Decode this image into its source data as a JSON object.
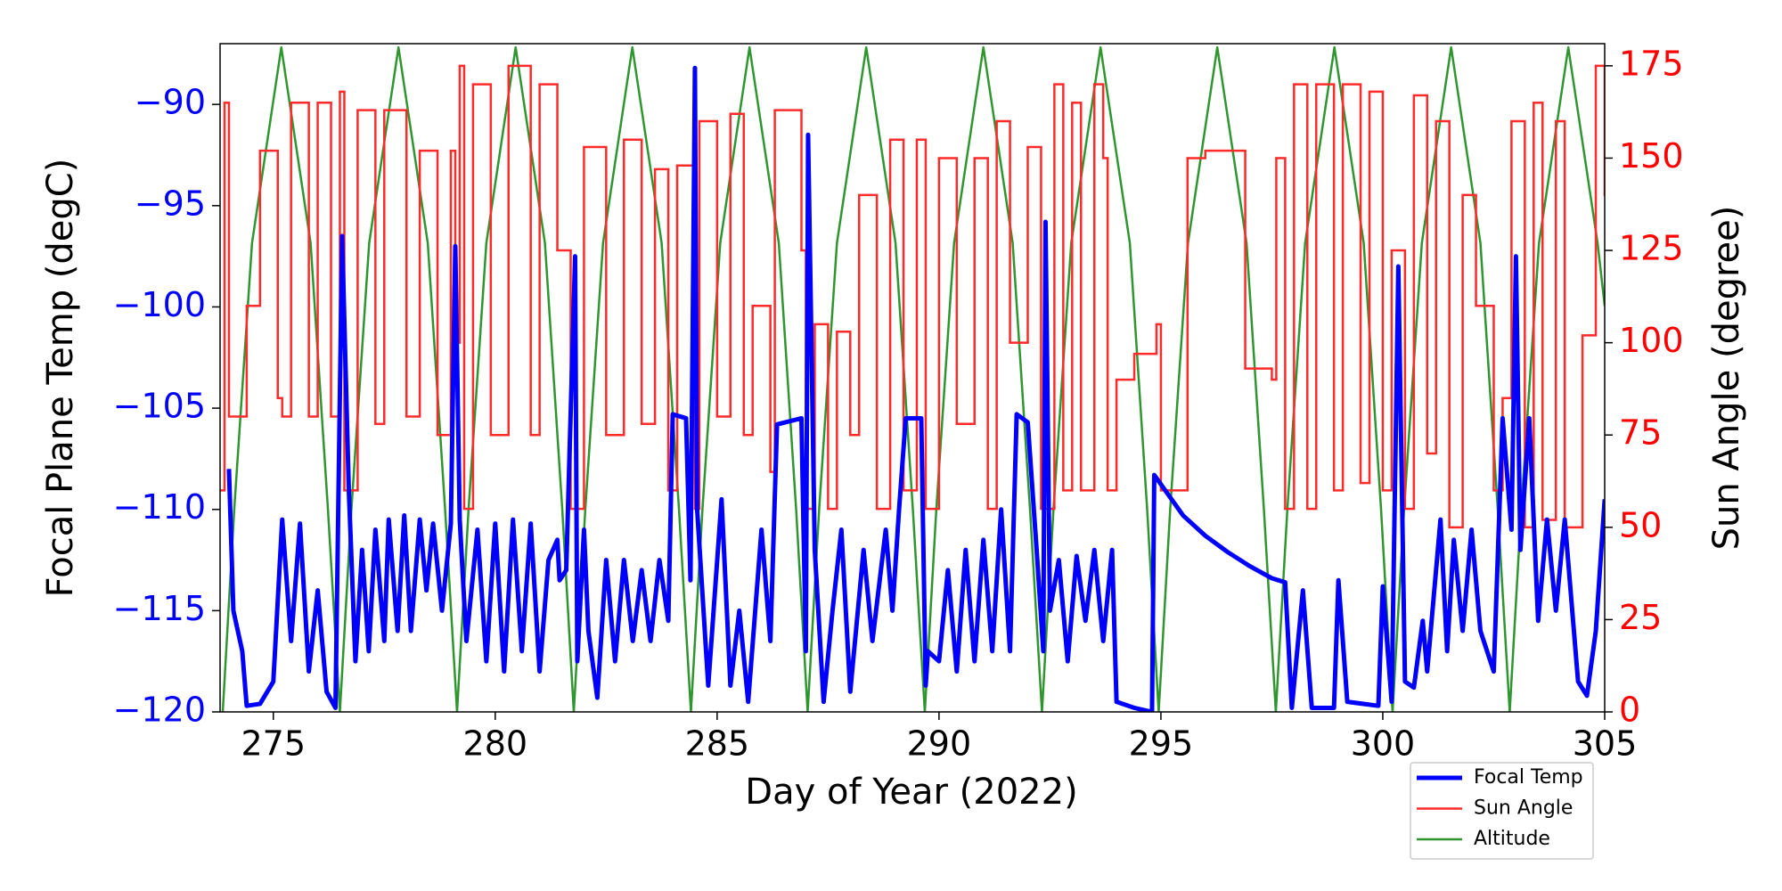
{
  "chart_data": {
    "type": "line",
    "xlabel": "Day of Year (2022)",
    "ylabel": "Focal Plane Temp (degC)",
    "y2label": "Sun Angle (degree)",
    "xlim": [
      273.8,
      305
    ],
    "xticks": [
      275,
      280,
      285,
      290,
      295,
      300,
      305
    ],
    "ylim": [
      -120,
      -87
    ],
    "yticks": [
      {
        "value": -120,
        "label": "−120"
      },
      {
        "value": -115,
        "label": "−115"
      },
      {
        "value": -110,
        "label": "−110"
      },
      {
        "value": -105,
        "label": "−105"
      },
      {
        "value": -100,
        "label": "−100"
      },
      {
        "value": -95,
        "label": "−95"
      },
      {
        "value": -90,
        "label": "−90"
      }
    ],
    "y2lim": [
      0,
      181
    ],
    "y2ticks": [
      0,
      25,
      50,
      75,
      100,
      125,
      150,
      175
    ],
    "ytick_color": "#0000ff",
    "y2tick_color": "#ff0000",
    "legend": "lower right",
    "series": [
      {
        "name": "Focal Temp",
        "color": "#0000ff",
        "line_width": 5,
        "x": [
          274.0,
          274.1,
          274.3,
          274.4,
          274.7,
          275.0,
          275.2,
          275.4,
          275.6,
          275.8,
          276.0,
          276.2,
          276.4,
          276.55,
          276.7,
          276.85,
          277.0,
          277.15,
          277.3,
          277.5,
          277.6,
          277.8,
          277.95,
          278.1,
          278.3,
          278.45,
          278.6,
          278.8,
          279.0,
          279.1,
          279.2,
          279.35,
          279.6,
          279.8,
          280.0,
          280.2,
          280.4,
          280.6,
          280.8,
          281.0,
          281.2,
          281.4,
          281.45,
          281.6,
          281.8,
          281.85,
          282.0,
          282.1,
          282.3,
          282.5,
          282.7,
          282.9,
          283.1,
          283.3,
          283.5,
          283.7,
          283.9,
          284.0,
          284.3,
          284.4,
          284.5,
          284.55,
          284.8,
          285.1,
          285.3,
          285.5,
          285.7,
          286.0,
          286.2,
          286.35,
          286.9,
          287.0,
          287.05,
          287.2,
          287.4,
          287.6,
          287.8,
          288.0,
          288.3,
          288.5,
          288.8,
          288.95,
          289.1,
          289.25,
          289.6,
          289.7,
          289.75,
          290.0,
          290.2,
          290.4,
          290.6,
          290.8,
          291.0,
          291.2,
          291.4,
          291.6,
          291.75,
          292.0,
          292.2,
          292.35,
          292.4,
          292.5,
          292.7,
          292.9,
          293.1,
          293.3,
          293.5,
          293.7,
          293.9,
          294.0,
          294.4,
          294.8,
          294.85,
          295.5,
          296.0,
          296.5,
          297.0,
          297.5,
          297.8,
          297.95,
          298.2,
          298.4,
          298.9,
          299.0,
          299.2,
          299.9,
          300.0,
          300.2,
          300.35,
          300.5,
          300.7,
          300.9,
          301.0,
          301.3,
          301.45,
          301.6,
          301.8,
          302.0,
          302.2,
          302.5,
          302.7,
          302.9,
          303.0,
          303.1,
          303.3,
          303.5,
          303.7,
          303.9,
          304.1,
          304.4,
          304.6,
          304.8,
          305.0
        ],
        "values": [
          -108,
          -115,
          -117,
          -119.7,
          -119.6,
          -118.5,
          -110.5,
          -116.5,
          -110.7,
          -118,
          -114,
          -119,
          -119.8,
          -96.5,
          -109,
          -117.5,
          -112,
          -117,
          -111,
          -116.5,
          -110.5,
          -116,
          -110.3,
          -116,
          -110.5,
          -114,
          -110.7,
          -115,
          -110.7,
          -97,
          -110.5,
          -116.5,
          -111,
          -117.5,
          -110.7,
          -118,
          -110.5,
          -117,
          -110.7,
          -118,
          -112.5,
          -111.5,
          -113.5,
          -113,
          -97.5,
          -117.5,
          -111,
          -116,
          -119.3,
          -112.5,
          -117.5,
          -112.5,
          -116.5,
          -113,
          -116.5,
          -112.5,
          -115.5,
          -105.3,
          -105.5,
          -113.5,
          -88.2,
          -110,
          -118.7,
          -109.5,
          -118.7,
          -115,
          -119.5,
          -111,
          -116.5,
          -105.8,
          -105.5,
          -117,
          -91.5,
          -112,
          -119.5,
          -115,
          -111,
          -119,
          -112,
          -116.5,
          -111,
          -115,
          -110,
          -105.5,
          -105.5,
          -118.7,
          -117,
          -117.5,
          -113,
          -118,
          -112,
          -117.5,
          -111.5,
          -117,
          -110,
          -117,
          -105.3,
          -105.7,
          -112,
          -117,
          -95.8,
          -115,
          -112.5,
          -117.5,
          -112.3,
          -115.5,
          -112,
          -116.5,
          -112,
          -119.5,
          -119.8,
          -120,
          -108.3,
          -110.3,
          -111.3,
          -112.1,
          -112.8,
          -113.4,
          -113.6,
          -119.8,
          -114,
          -119.8,
          -119.8,
          -113.5,
          -119.5,
          -119.7,
          -113.8,
          -119.5,
          -98,
          -118.5,
          -118.8,
          -115.5,
          -118,
          -110.5,
          -117,
          -111.5,
          -116,
          -111,
          -116,
          -118,
          -105.5,
          -111,
          -97.5,
          -112,
          -105.5,
          -115.5,
          -110.5,
          -115,
          -110.5,
          -118.5,
          -119.2,
          -116,
          -109.5
        ]
      },
      {
        "name": "Sun Angle",
        "color": "#ff2a2a",
        "line_width": 2.5,
        "axis": "y2",
        "drawstyle": "steps-post",
        "x": [
          273.8,
          273.9,
          274.0,
          274.4,
          274.7,
          275.1,
          275.2,
          275.4,
          275.8,
          276.0,
          276.3,
          276.5,
          276.6,
          276.9,
          277.3,
          277.5,
          278.0,
          278.3,
          278.7,
          279.0,
          279.1,
          279.2,
          279.3,
          279.5,
          279.9,
          280.3,
          280.8,
          281.0,
          281.4,
          281.7,
          282.0,
          282.5,
          282.9,
          283.3,
          283.6,
          283.9,
          284.1,
          284.5,
          284.6,
          285.0,
          285.3,
          285.6,
          285.8,
          286.2,
          286.3,
          286.9,
          287.0,
          287.2,
          287.5,
          287.7,
          288.0,
          288.2,
          288.6,
          288.9,
          289.2,
          289.5,
          289.7,
          290.0,
          290.4,
          290.8,
          291.1,
          291.3,
          291.6,
          292.0,
          292.3,
          292.6,
          292.8,
          293.0,
          293.2,
          293.5,
          293.7,
          293.8,
          294.0,
          294.4,
          294.9,
          295.0,
          295.6,
          296.0,
          296.9,
          297.5,
          297.6,
          297.8,
          298.0,
          298.3,
          298.5,
          298.9,
          299.1,
          299.5,
          299.7,
          300.0,
          300.2,
          300.5,
          300.7,
          301.0,
          301.2,
          301.5,
          301.8,
          302.1,
          302.5,
          302.7,
          302.9,
          303.2,
          303.4,
          303.6,
          303.9,
          304.1,
          304.5,
          304.8,
          305.0
        ],
        "values": [
          60,
          165,
          80,
          110,
          152,
          85,
          80,
          165,
          80,
          165,
          80,
          168,
          60,
          163,
          78,
          163,
          80,
          152,
          75,
          152,
          100,
          175,
          55,
          170,
          75,
          175,
          75,
          170,
          125,
          55,
          153,
          75,
          155,
          78,
          147,
          60,
          148,
          55,
          160,
          80,
          162,
          75,
          110,
          65,
          163,
          125,
          55,
          105,
          55,
          103,
          75,
          140,
          55,
          155,
          60,
          155,
          55,
          150,
          78,
          150,
          55,
          160,
          100,
          153,
          55,
          170,
          60,
          165,
          60,
          170,
          150,
          60,
          90,
          97,
          105,
          60,
          150,
          152,
          93,
          90,
          150,
          55,
          170,
          55,
          170,
          60,
          170,
          62,
          168,
          60,
          125,
          55,
          167,
          70,
          160,
          50,
          140,
          110,
          60,
          85,
          160,
          50,
          165,
          52,
          160,
          50,
          102,
          175,
          140
        ]
      },
      {
        "name": "Altitude",
        "color": "#2f962f",
        "line_width": 2.5,
        "axis": "y2",
        "x": [
          273.86,
          274.12,
          274.52,
          275.18,
          275.84,
          276.23,
          276.5,
          276.76,
          277.16,
          277.82,
          278.48,
          278.87,
          279.14,
          279.4,
          279.8,
          280.46,
          281.12,
          281.51,
          281.77,
          282.03,
          282.43,
          283.09,
          283.75,
          284.14,
          284.41,
          284.67,
          285.07,
          285.73,
          286.39,
          286.78,
          287.04,
          287.3,
          287.7,
          288.36,
          289.02,
          289.41,
          289.68,
          289.94,
          290.34,
          291.0,
          291.66,
          292.05,
          292.32,
          292.58,
          292.98,
          293.64,
          294.3,
          294.69,
          294.95,
          295.21,
          295.61,
          296.27,
          296.93,
          297.32,
          297.59,
          297.85,
          298.25,
          298.91,
          299.57,
          299.96,
          300.22,
          300.48,
          300.88,
          301.54,
          302.2,
          302.59,
          302.86,
          303.12,
          303.52,
          304.18,
          304.84,
          305.0
        ],
        "values": [
          0,
          55,
          127,
          180,
          127,
          55,
          0,
          55,
          127,
          180,
          127,
          55,
          0,
          55,
          127,
          180,
          127,
          55,
          0,
          55,
          127,
          180,
          127,
          55,
          0,
          55,
          127,
          180,
          127,
          55,
          0,
          55,
          127,
          180,
          127,
          55,
          0,
          55,
          127,
          180,
          127,
          55,
          0,
          55,
          127,
          180,
          127,
          55,
          0,
          55,
          127,
          180,
          127,
          55,
          0,
          55,
          127,
          180,
          127,
          55,
          0,
          55,
          127,
          180,
          127,
          55,
          0,
          55,
          127,
          180,
          127,
          110
        ]
      }
    ]
  }
}
